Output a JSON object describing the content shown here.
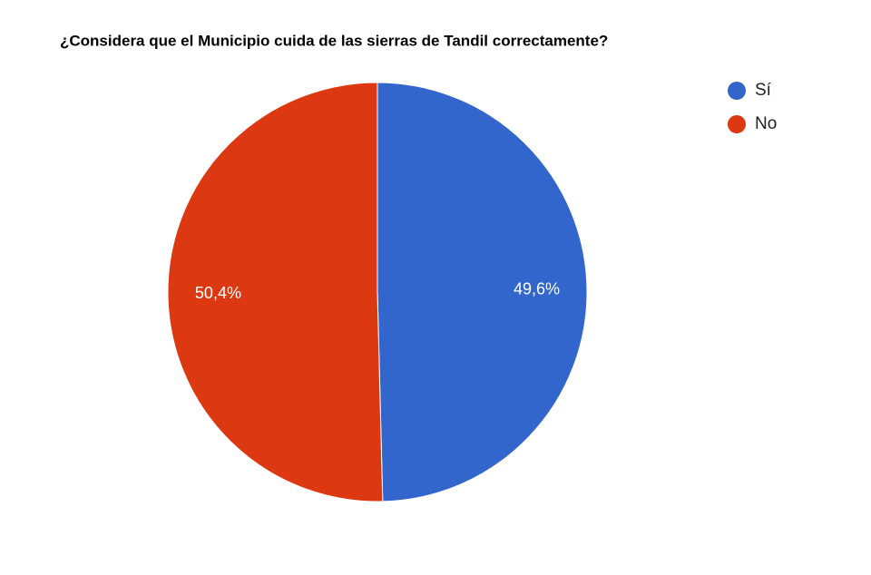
{
  "chart_data": {
    "type": "pie",
    "title": "¿Considera que el Municipio cuida de las sierras de Tandil correctamente?",
    "categories": [
      "Sí",
      "No"
    ],
    "values": [
      49.6,
      50.4
    ],
    "value_labels": [
      "49,6%",
      "50,4%"
    ],
    "colors": [
      "#3366cc",
      "#dc3912"
    ],
    "legend": "right"
  }
}
